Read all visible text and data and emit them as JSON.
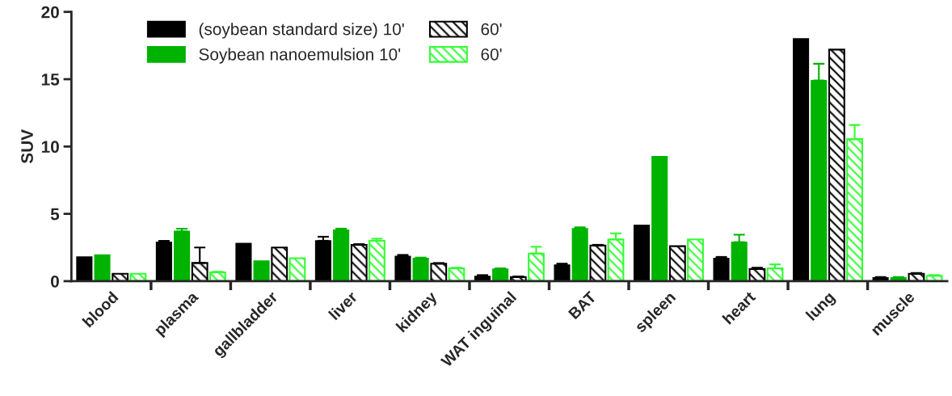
{
  "chart_data": {
    "type": "bar",
    "ylabel": "SUV",
    "categories": [
      "blood",
      "plasma",
      "gallbladder",
      "liver",
      "kidney",
      "WAT inguinal",
      "BAT",
      "spleen",
      "heart",
      "lung",
      "muscle"
    ],
    "series": [
      {
        "name": "(soybean standard size) 10'",
        "color": "#000000",
        "values": [
          1.8,
          2.9,
          2.8,
          3.0,
          1.85,
          0.35,
          1.2,
          4.15,
          1.7,
          18.0,
          0.25
        ],
        "errors": [
          null,
          [
            2.9,
            3.0
          ],
          null,
          [
            3.0,
            3.3
          ],
          [
            1.85,
            1.95
          ],
          [
            0.35,
            0.45
          ],
          [
            1.2,
            1.3
          ],
          null,
          [
            1.7,
            1.8
          ],
          null,
          [
            0.25,
            0.3
          ]
        ]
      },
      {
        "name": "Soybean nanoemulsion 10'",
        "color": "#00b300",
        "values": [
          1.95,
          3.7,
          1.5,
          3.8,
          1.7,
          0.9,
          3.9,
          9.25,
          2.9,
          14.9,
          0.25
        ],
        "errors": [
          null,
          [
            3.7,
            3.9
          ],
          null,
          [
            3.8,
            3.9
          ],
          [
            1.7,
            1.75
          ],
          [
            0.9,
            0.95
          ],
          [
            3.9,
            4.0
          ],
          null,
          [
            2.9,
            3.45
          ],
          [
            14.9,
            16.15
          ],
          [
            0.25,
            0.3
          ]
        ]
      },
      {
        "name": "60'",
        "color": "#000000",
        "values": [
          0.55,
          1.35,
          2.5,
          2.7,
          1.3,
          0.3,
          2.65,
          2.6,
          0.9,
          17.2,
          0.55
        ],
        "errors": [
          null,
          [
            1.35,
            2.5
          ],
          null,
          [
            2.7,
            2.75
          ],
          [
            1.3,
            1.35
          ],
          [
            0.3,
            0.35
          ],
          [
            2.65,
            2.7
          ],
          null,
          [
            0.9,
            1.0
          ],
          null,
          [
            0.55,
            0.6
          ]
        ]
      },
      {
        "name": "60'",
        "color": "#33ff33",
        "values": [
          0.55,
          0.65,
          1.7,
          3.0,
          0.95,
          2.05,
          3.1,
          3.1,
          0.95,
          10.55,
          0.4
        ],
        "errors": [
          null,
          [
            0.65,
            0.7
          ],
          null,
          [
            3.0,
            3.15
          ],
          [
            0.95,
            1.0
          ],
          [
            2.05,
            2.55
          ],
          [
            3.1,
            3.55
          ],
          null,
          [
            0.95,
            1.25
          ],
          [
            10.55,
            11.6
          ],
          [
            0.4,
            0.45
          ]
        ]
      }
    ],
    "ylim": [
      0,
      20
    ],
    "yticks": [
      0,
      5,
      10,
      15,
      20
    ],
    "grid": false,
    "legend": "top left"
  }
}
